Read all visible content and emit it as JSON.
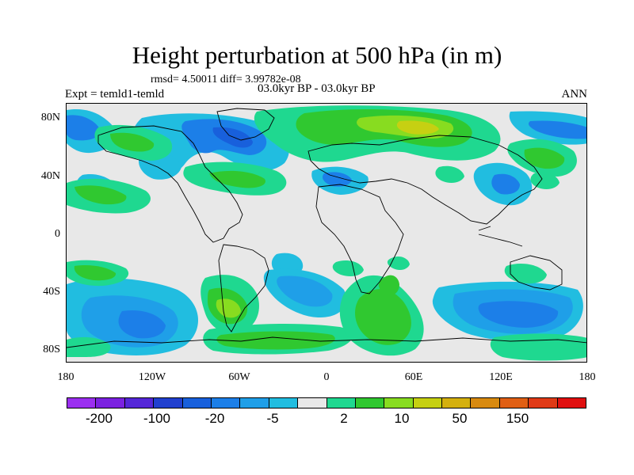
{
  "title": "Height perturbation at 500 hPa (in m)",
  "stats": "rmsd= 4.50011 diff= 3.99782e-08",
  "experiment": "Expt = temld1-temld",
  "period": "03.0kyr BP - 03.0kyr BP",
  "season": "ANN",
  "lat_labels": [
    "80N",
    "40N",
    "0",
    "40S",
    "80S"
  ],
  "lon_labels": [
    "180",
    "120W",
    "60W",
    "0",
    "60E",
    "120E",
    "180"
  ],
  "colorbar": {
    "colors": [
      "#9b2ff0",
      "#7b22e0",
      "#5527d8",
      "#2140cf",
      "#1860dc",
      "#1c7fe8",
      "#1f9fe8",
      "#21bde0",
      "#e8e8e8",
      "#1fd890",
      "#30c830",
      "#88dc20",
      "#c6d012",
      "#d4b00e",
      "#d88a10",
      "#e05f14",
      "#e03a16",
      "#e01010"
    ],
    "labels": [
      "-200",
      "-100",
      "-20",
      "-5",
      "2",
      "10",
      "50",
      "150"
    ]
  },
  "map": {
    "background_color": "#e8e8e8",
    "fields": [
      {
        "name": "arctic-canada-low",
        "color": "#1f9fe8"
      },
      {
        "name": "north-pacific-high",
        "color": "#30c830"
      },
      {
        "name": "eurasia-high",
        "color": "#88dc20"
      },
      {
        "name": "southern-ocean-low",
        "color": "#1f9fe8"
      },
      {
        "name": "southern-ocean-high",
        "color": "#30c830"
      }
    ]
  }
}
